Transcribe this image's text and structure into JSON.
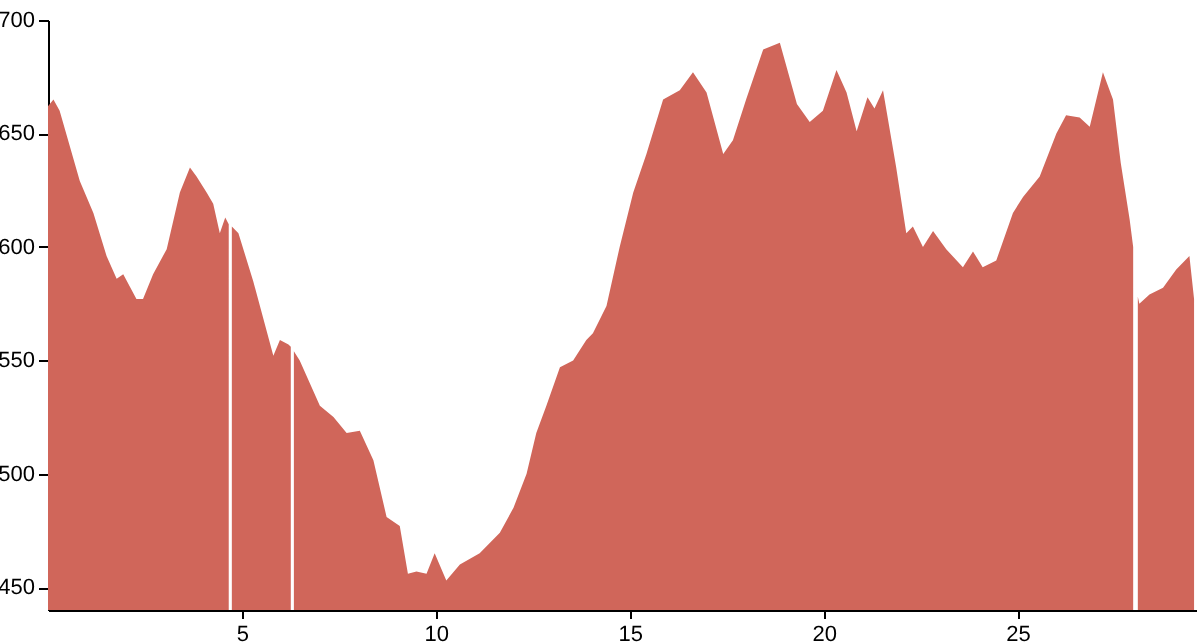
{
  "chart_data": {
    "type": "area",
    "color": "#d0665a",
    "xlim": [
      0,
      29.6
    ],
    "xticks": [
      5,
      10,
      15,
      20,
      25
    ],
    "ylim": [
      440,
      700
    ],
    "yticks": [
      450,
      500,
      550,
      600,
      650,
      700
    ],
    "grid": false,
    "x": [
      0,
      0.14,
      0.3,
      0.82,
      1.17,
      1.51,
      1.77,
      1.94,
      2.28,
      2.45,
      2.71,
      3.06,
      3.4,
      3.66,
      3.83,
      4.09,
      4.26,
      4.43,
      4.57,
      4.66,
      4.7,
      4.74,
      4.91,
      5.29,
      5.81,
      5.98,
      6.2,
      6.26,
      6.3,
      6.34,
      6.49,
      7.01,
      7.36,
      7.7,
      8.04,
      8.39,
      8.73,
      9.07,
      9.28,
      9.5,
      9.76,
      9.97,
      10.27,
      10.62,
      11.13,
      11.65,
      12.0,
      12.34,
      12.59,
      12.85,
      13.2,
      13.54,
      13.88,
      14.05,
      14.4,
      14.74,
      15.09,
      15.43,
      15.86,
      16.29,
      16.63,
      16.98,
      17.41,
      17.66,
      18.0,
      18.44,
      18.87,
      19.31,
      19.64,
      19.98,
      20.33,
      20.59,
      20.85,
      21.13,
      21.31,
      21.53,
      21.87,
      22.13,
      22.3,
      22.56,
      22.82,
      23.16,
      23.59,
      23.85,
      24.1,
      24.45,
      24.88,
      25.14,
      25.57,
      26.0,
      26.25,
      26.6,
      26.86,
      27.2,
      27.46,
      27.66,
      27.89,
      27.98,
      28.03,
      28.1,
      28.14,
      28.4,
      28.75,
      29.09,
      29.43,
      29.55
    ],
    "values": [
      662,
      665,
      660,
      629,
      615,
      596,
      586,
      588,
      577,
      577,
      588,
      599,
      624,
      635,
      631,
      624,
      619,
      606,
      613,
      610,
      null,
      609,
      606,
      585,
      552,
      559,
      557,
      556,
      null,
      554,
      550,
      530,
      525,
      518,
      519,
      506,
      481,
      477,
      456,
      457,
      456,
      465,
      453,
      460,
      465,
      474,
      485,
      500,
      518,
      530,
      547,
      550,
      559,
      562,
      574,
      600,
      624,
      641,
      665,
      669,
      677,
      668,
      641,
      647,
      665,
      687,
      690,
      663,
      655,
      660,
      678,
      668,
      651,
      666,
      661,
      669,
      635,
      606,
      609,
      600,
      607,
      599,
      591,
      598,
      591,
      594,
      615,
      622,
      631,
      650,
      658,
      657,
      653,
      677,
      665,
      637,
      612,
      600,
      null,
      578,
      575,
      579,
      582,
      590,
      596,
      577
    ]
  }
}
